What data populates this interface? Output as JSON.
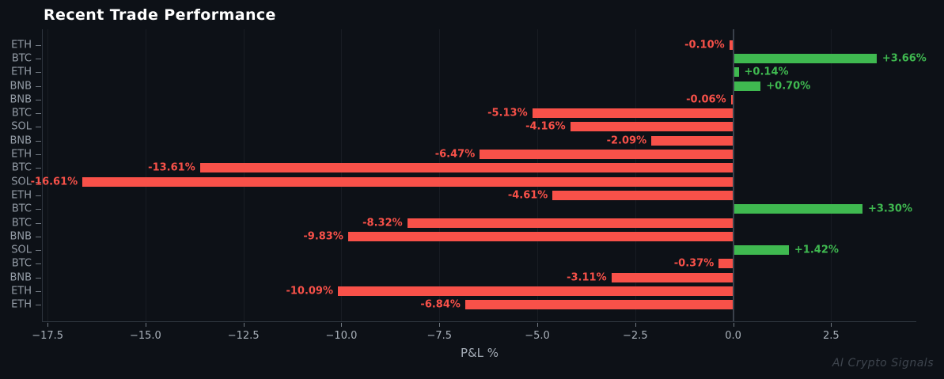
{
  "watermark": "AI Crypto Signals",
  "colors": {
    "background": "#0d1117",
    "positive": "#3fb950",
    "negative": "#f85149",
    "title": "#ffffff",
    "tick_label": "#a9b1ba",
    "category_label": "#949ca6",
    "axis_title": "#a3abb5",
    "spine": "#2e353e",
    "zero_line": "#3a414b",
    "watermark": "#3e454e"
  },
  "chart_data": {
    "type": "bar",
    "orientation": "horizontal",
    "title": "Recent Trade Performance",
    "xlabel": "P&L %",
    "ylabel": "",
    "grid": true,
    "legend": false,
    "xlim": [
      -17.6235,
      4.6735
    ],
    "xticks": [
      -17.5,
      -15.0,
      -12.5,
      -10.0,
      -7.5,
      -5.0,
      -2.5,
      0.0,
      2.5
    ],
    "xtick_labels": [
      "−17.5",
      "−15.0",
      "−12.5",
      "−10.0",
      "−7.5",
      "−5.0",
      "−2.5",
      "0.0",
      "2.5"
    ],
    "categories": [
      "ETH",
      "BTC",
      "ETH",
      "BNB",
      "BNB",
      "BTC",
      "SOL",
      "BNB",
      "ETH",
      "BTC",
      "SOL",
      "ETH",
      "BTC",
      "BTC",
      "BNB",
      "SOL",
      "BTC",
      "BNB",
      "ETH",
      "ETH"
    ],
    "values": [
      -0.1,
      3.66,
      0.14,
      0.7,
      -0.06,
      -5.13,
      -4.16,
      -2.09,
      -6.47,
      -13.61,
      -16.61,
      -4.61,
      3.3,
      -8.32,
      -9.83,
      1.42,
      -0.37,
      -3.11,
      -10.09,
      -6.84
    ],
    "value_labels": [
      "-0.10%",
      "+3.66%",
      "+0.14%",
      "+0.70%",
      "-0.06%",
      "-5.13%",
      "-4.16%",
      "-2.09%",
      "-6.47%",
      "-13.61%",
      "-16.61%",
      "-4.61%",
      "+3.30%",
      "-8.32%",
      "-9.83%",
      "+1.42%",
      "-0.37%",
      "-3.11%",
      "-10.09%",
      "-6.84%"
    ]
  }
}
